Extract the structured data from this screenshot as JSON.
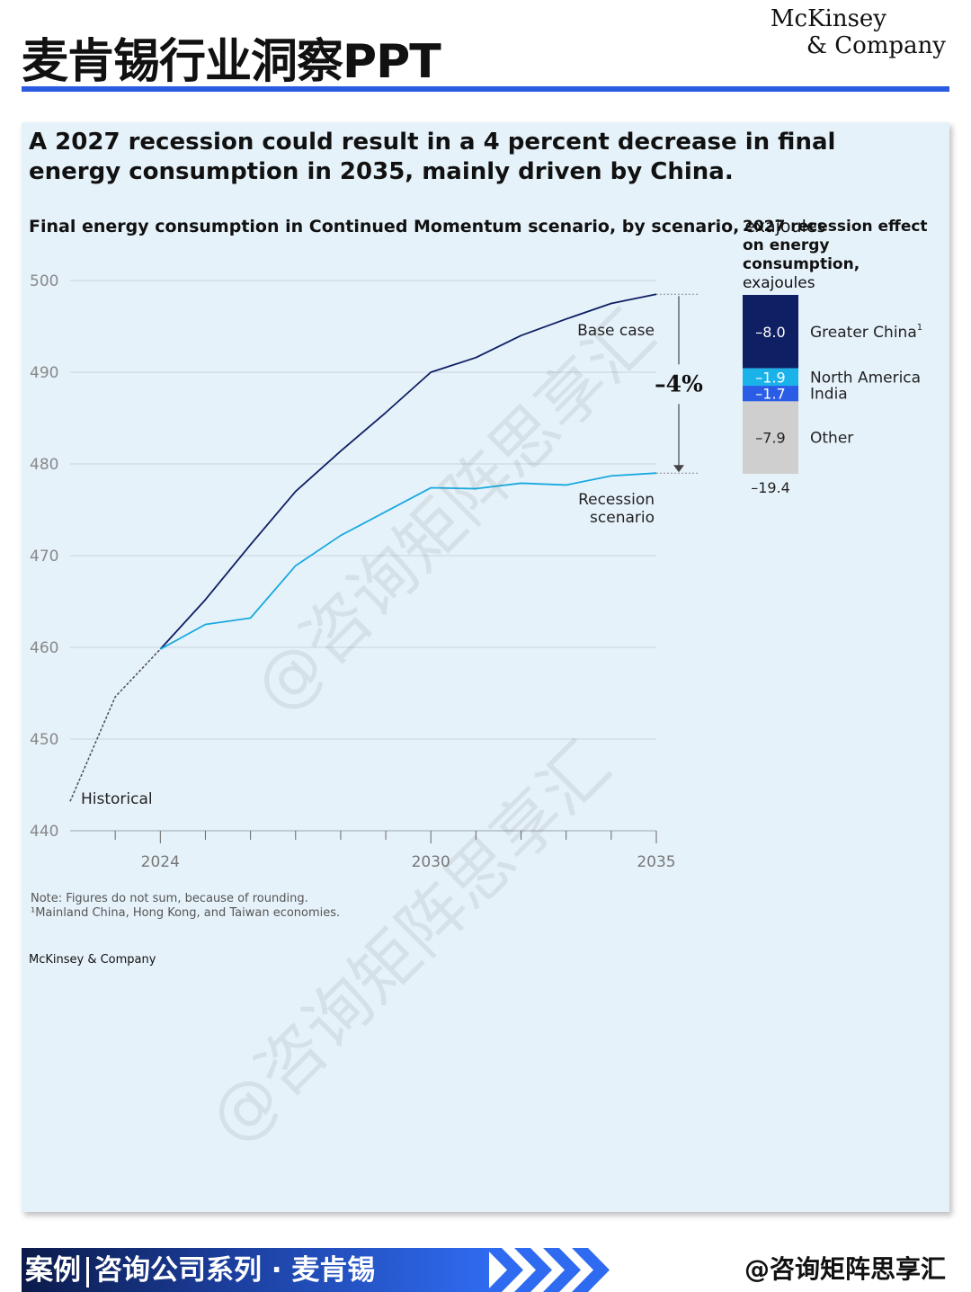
{
  "page": {
    "title": "麦肯锡行业洞察PPT",
    "logo_line1": "McKinsey",
    "logo_line2": "& Company"
  },
  "card": {
    "headline": "A 2027 recession could result in a 4 percent decrease in final energy consumption in 2035, mainly driven by China.",
    "note": "Note: Figures do not sum, because of rounding.",
    "footnote": "¹Mainland China, Hong Kong, and Taiwan economies.",
    "source": "McKinsey & Company"
  },
  "watermark": "@咨询矩阵思享汇",
  "footer": {
    "part1": "案例",
    "part2": "咨询公司系列 · 麦肯锡",
    "handle": "@咨询矩阵思享汇"
  },
  "chart_data": [
    {
      "type": "line",
      "title_bold": "Final energy consumption in Continued Momentum scenario, by scenario,",
      "title_unit": "exajoules",
      "ylim": [
        440,
        500
      ],
      "yticks": [
        500,
        490,
        480,
        470,
        460,
        450,
        440
      ],
      "xlim": [
        2022,
        2035
      ],
      "xticks_labeled": [
        2024,
        2030,
        2035
      ],
      "grid": true,
      "series": [
        {
          "name": "Historical",
          "color": "#555555",
          "dashed": true,
          "x": [
            2022,
            2023,
            2024
          ],
          "y": [
            443.2,
            454.6,
            459.8
          ]
        },
        {
          "name": "Base case",
          "color": "#0e1f63",
          "x": [
            2024,
            2025,
            2026,
            2027,
            2028,
            2029,
            2030,
            2031,
            2032,
            2033,
            2034,
            2035
          ],
          "y": [
            459.8,
            465.2,
            471.2,
            477.0,
            481.4,
            485.6,
            490.0,
            491.6,
            494.0,
            495.8,
            497.5,
            498.5
          ]
        },
        {
          "name": "Recession scenario",
          "color": "#18a9df",
          "x": [
            2024,
            2025,
            2026,
            2027,
            2028,
            2029,
            2030,
            2031,
            2032,
            2033,
            2034,
            2035
          ],
          "y": [
            459.8,
            462.5,
            463.2,
            468.9,
            472.2,
            474.8,
            477.4,
            477.3,
            477.9,
            477.7,
            478.7,
            479.0
          ]
        }
      ],
      "annotation": "–4%",
      "series_labels": {
        "base": "Base case",
        "recession_line1": "Recession",
        "recession_line2": "scenario",
        "historical": "Historical"
      }
    },
    {
      "type": "bar",
      "title_bold_line1": "2027 recession effect",
      "title_bold_line2": "on energy consumption,",
      "title_unit": "exajoules",
      "categories": [
        "Greater China",
        "North America",
        "India",
        "Other"
      ],
      "values": [
        -8.0,
        -1.9,
        -1.7,
        -7.9
      ],
      "value_labels": [
        "–8.0",
        "–1.9",
        "–1.7",
        "–7.9"
      ],
      "category_labels": [
        "Greater China",
        "North America",
        "India",
        "Other"
      ],
      "footnote_marker": "1",
      "colors": [
        "#0e1f63",
        "#19b3ea",
        "#2b5ce6",
        "#cfcfcf"
      ],
      "total": -19.4,
      "total_label": "–19.4"
    }
  ]
}
